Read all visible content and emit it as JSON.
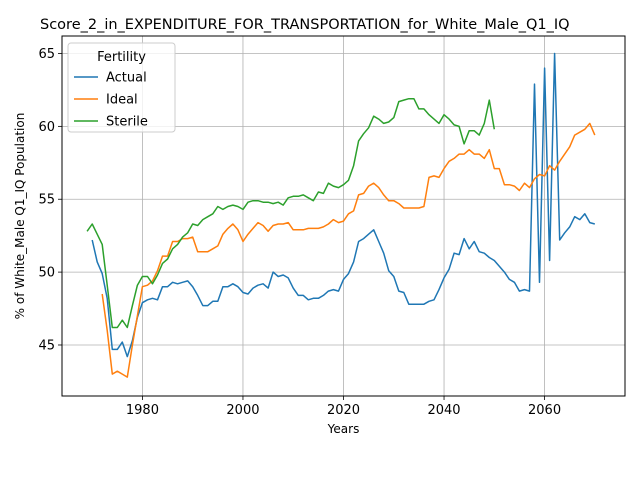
{
  "chart_data": {
    "type": "line",
    "title": "Score_2_in_EXPENDITURE_FOR_TRANSPORTATION_for_White_Male_Q1_IQ",
    "xlabel": "Years",
    "ylabel": "% of White_Male Q1_IQ Population",
    "xlim": [
      1964,
      2076
    ],
    "ylim": [
      41.5,
      66.2
    ],
    "xticks": [
      1980,
      2000,
      2020,
      2040,
      2060
    ],
    "yticks": [
      45,
      50,
      55,
      60,
      65
    ],
    "grid": true,
    "legend": {
      "title": "Fertility",
      "placement": "top-left"
    },
    "series": [
      {
        "name": "Actual",
        "color": "#1f77b4",
        "x": [
          1970,
          1971,
          1972,
          1973,
          1974,
          1975,
          1976,
          1977,
          1978,
          1979,
          1980,
          1981,
          1982,
          1983,
          1984,
          1985,
          1986,
          1987,
          1988,
          1989,
          1990,
          1991,
          1992,
          1993,
          1994,
          1995,
          1996,
          1997,
          1998,
          1999,
          2000,
          2001,
          2002,
          2003,
          2004,
          2005,
          2006,
          2007,
          2008,
          2009,
          2010,
          2011,
          2012,
          2013,
          2014,
          2015,
          2016,
          2017,
          2018,
          2019,
          2020,
          2021,
          2022,
          2023,
          2024,
          2025,
          2026,
          2027,
          2028,
          2029,
          2030,
          2031,
          2032,
          2033,
          2034,
          2035,
          2036,
          2037,
          2038,
          2039,
          2040,
          2041,
          2042,
          2043,
          2044,
          2045,
          2046,
          2047,
          2048,
          2049,
          2050,
          2051,
          2052,
          2053,
          2054,
          2055,
          2056,
          2057,
          2058,
          2059,
          2060,
          2061,
          2062,
          2063,
          2064,
          2065,
          2066,
          2067,
          2068,
          2069,
          2070
        ],
        "values": [
          52.2,
          50.7,
          49.9,
          48.2,
          44.7,
          44.7,
          45.2,
          44.2,
          45.3,
          46.9,
          47.9,
          48.1,
          48.2,
          48.1,
          49.0,
          49.0,
          49.3,
          49.2,
          49.3,
          49.4,
          49.0,
          48.4,
          47.7,
          47.7,
          48.0,
          48.0,
          49.0,
          49.0,
          49.2,
          49.0,
          48.6,
          48.5,
          48.9,
          49.1,
          49.2,
          48.9,
          50.0,
          49.7,
          49.8,
          49.6,
          48.9,
          48.4,
          48.4,
          48.1,
          48.2,
          48.2,
          48.4,
          48.7,
          48.8,
          48.7,
          49.5,
          49.9,
          50.7,
          52.1,
          52.3,
          52.6,
          52.9,
          52.1,
          51.3,
          50.1,
          49.7,
          48.7,
          48.6,
          47.8,
          47.8,
          47.8,
          47.8,
          48.0,
          48.1,
          48.8,
          49.6,
          50.2,
          51.3,
          51.2,
          52.3,
          51.6,
          52.1,
          51.4,
          51.3,
          51.0,
          50.8,
          50.4,
          50.0,
          49.5,
          49.3,
          48.7,
          48.8,
          48.7,
          62.9,
          49.3,
          64.0,
          50.8,
          65.0,
          52.2,
          52.7,
          53.1,
          53.8,
          53.6,
          54.0,
          53.4,
          53.3
        ]
      },
      {
        "name": "Ideal",
        "color": "#ff7f0e",
        "x": [
          1972,
          1973,
          1974,
          1975,
          1976,
          1977,
          1978,
          1979,
          1980,
          1981,
          1982,
          1983,
          1984,
          1985,
          1986,
          1987,
          1988,
          1989,
          1990,
          1991,
          1992,
          1993,
          1994,
          1995,
          1996,
          1997,
          1998,
          1999,
          2000,
          2001,
          2002,
          2003,
          2004,
          2005,
          2006,
          2007,
          2008,
          2009,
          2010,
          2011,
          2012,
          2013,
          2014,
          2015,
          2016,
          2017,
          2018,
          2019,
          2020,
          2021,
          2022,
          2023,
          2024,
          2025,
          2026,
          2027,
          2028,
          2029,
          2030,
          2031,
          2032,
          2033,
          2034,
          2035,
          2036,
          2037,
          2038,
          2039,
          2040,
          2041,
          2042,
          2043,
          2044,
          2045,
          2046,
          2047,
          2048,
          2049,
          2050,
          2051,
          2052,
          2053,
          2054,
          2055,
          2056,
          2057,
          2058,
          2059,
          2060,
          2061,
          2062,
          2063,
          2064,
          2065,
          2066,
          2067,
          2068,
          2069,
          2070
        ],
        "values": [
          48.5,
          46.0,
          43.0,
          43.2,
          43.0,
          42.8,
          45.0,
          47.0,
          49.0,
          49.1,
          49.4,
          50.1,
          51.1,
          51.1,
          52.1,
          52.1,
          52.3,
          52.3,
          52.4,
          51.4,
          51.4,
          51.4,
          51.6,
          51.8,
          52.6,
          53.0,
          53.3,
          52.9,
          52.1,
          52.6,
          53.0,
          53.4,
          53.2,
          52.8,
          53.2,
          53.3,
          53.3,
          53.4,
          52.9,
          52.9,
          52.9,
          53.0,
          53.0,
          53.0,
          53.1,
          53.3,
          53.6,
          53.4,
          53.5,
          54.0,
          54.2,
          55.3,
          55.4,
          55.9,
          56.1,
          55.8,
          55.3,
          54.9,
          54.9,
          54.7,
          54.4,
          54.4,
          54.4,
          54.4,
          54.5,
          56.5,
          56.6,
          56.5,
          57.1,
          57.6,
          57.8,
          58.1,
          58.1,
          58.4,
          58.1,
          58.1,
          57.8,
          58.4,
          57.1,
          57.1,
          56.0,
          56.0,
          55.9,
          55.6,
          56.1,
          55.8,
          56.4,
          56.7,
          56.6,
          57.3,
          57.0,
          57.6,
          58.1,
          58.6,
          59.4,
          59.6,
          59.8,
          60.2,
          59.4
        ]
      },
      {
        "name": "Sterile",
        "color": "#2ca02c",
        "x": [
          1969,
          1970,
          1971,
          1972,
          1973,
          1974,
          1975,
          1976,
          1977,
          1978,
          1979,
          1980,
          1981,
          1982,
          1983,
          1984,
          1985,
          1986,
          1987,
          1988,
          1989,
          1990,
          1991,
          1992,
          1993,
          1994,
          1995,
          1996,
          1997,
          1998,
          1999,
          2000,
          2001,
          2002,
          2003,
          2004,
          2005,
          2006,
          2007,
          2008,
          2009,
          2010,
          2011,
          2012,
          2013,
          2014,
          2015,
          2016,
          2017,
          2018,
          2019,
          2020,
          2021,
          2022,
          2023,
          2024,
          2025,
          2026,
          2027,
          2028,
          2029,
          2030,
          2031,
          2032,
          2033,
          2034,
          2035,
          2036,
          2037,
          2038,
          2039,
          2040,
          2041,
          2042,
          2043,
          2044,
          2045,
          2046,
          2047,
          2048,
          2049,
          2050
        ],
        "values": [
          52.8,
          53.3,
          52.6,
          51.9,
          49.1,
          46.2,
          46.2,
          46.7,
          46.2,
          47.7,
          49.1,
          49.7,
          49.7,
          49.2,
          49.8,
          50.6,
          50.9,
          51.6,
          51.9,
          52.4,
          52.7,
          53.3,
          53.2,
          53.6,
          53.8,
          54.0,
          54.5,
          54.3,
          54.5,
          54.6,
          54.5,
          54.3,
          54.8,
          54.9,
          54.9,
          54.8,
          54.8,
          54.7,
          54.8,
          54.6,
          55.1,
          55.2,
          55.2,
          55.3,
          55.1,
          54.9,
          55.5,
          55.4,
          56.1,
          55.9,
          55.8,
          56.0,
          56.3,
          57.3,
          59.0,
          59.5,
          59.9,
          60.7,
          60.5,
          60.2,
          60.3,
          60.6,
          61.7,
          61.8,
          61.9,
          61.9,
          61.2,
          61.2,
          60.8,
          60.5,
          60.2,
          60.8,
          60.5,
          60.1,
          60.0,
          58.8,
          59.7,
          59.7,
          59.4,
          60.2,
          61.8,
          59.8
        ]
      }
    ]
  }
}
